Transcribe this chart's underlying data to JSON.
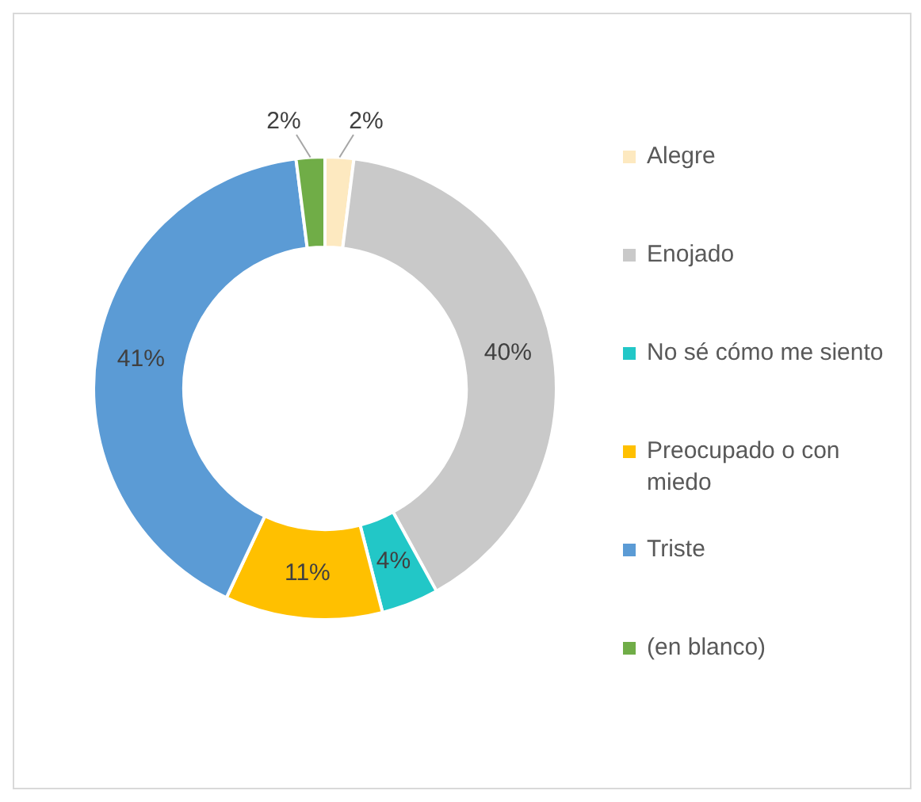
{
  "chart_data": {
    "type": "donut",
    "categories": [
      "Alegre",
      "Enojado",
      "No sé cómo me siento",
      "Preocupado o con miedo",
      "Triste",
      "(en blanco)"
    ],
    "values": [
      2,
      40,
      4,
      11,
      41,
      2
    ],
    "value_labels": [
      "2%",
      "40%",
      "4%",
      "11%",
      "41%",
      "2%"
    ],
    "colors": [
      "#fde9c0",
      "#c9c9c9",
      "#22c7c7",
      "#ffc000",
      "#5b9bd5",
      "#70ad47"
    ],
    "legend": "right"
  }
}
